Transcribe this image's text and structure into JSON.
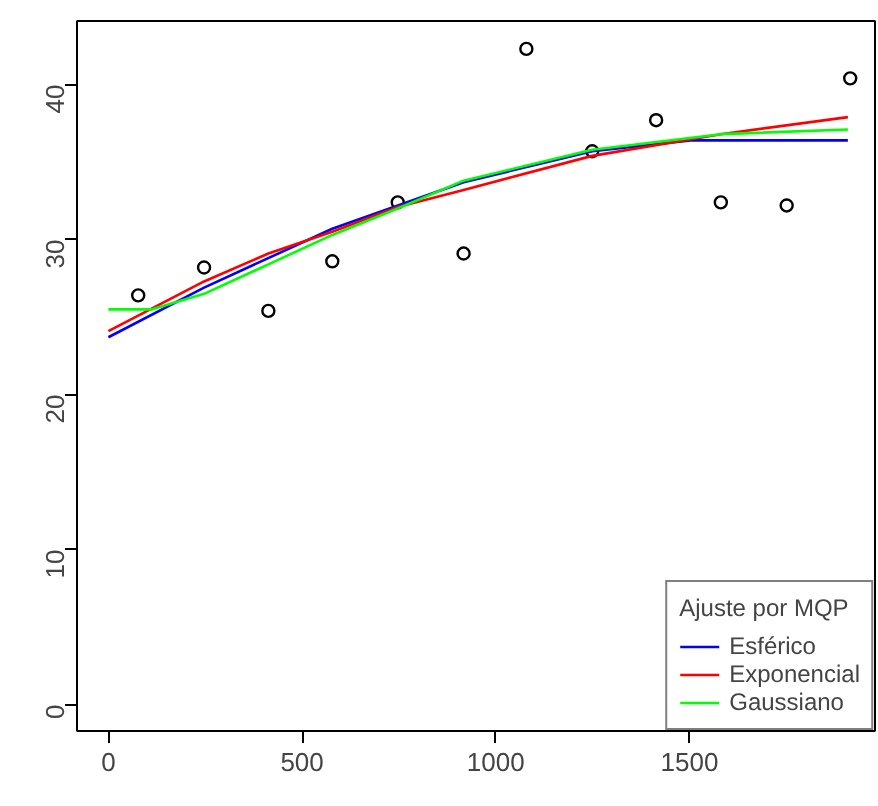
{
  "chart_data": {
    "type": "scatter",
    "xlim": [
      -81,
      1979
    ],
    "ylim": [
      -1.7,
      44.1
    ],
    "xticks": [
      0,
      500,
      1000,
      1500
    ],
    "yticks": [
      0,
      10,
      20,
      30,
      40
    ],
    "grid": false,
    "legend": "bottom right",
    "legend_title": "Ajuste por MQP",
    "series": [
      {
        "marker": "circle",
        "color": "#000000",
        "x": [
          77,
          247,
          413,
          578,
          747,
          917,
          1079,
          1249,
          1414,
          1581,
          1751,
          1915
        ],
        "values": [
          26.4,
          28.2,
          25.4,
          28.6,
          32.4,
          29.1,
          42.3,
          35.7,
          37.7,
          32.4,
          32.2,
          40.4
        ]
      },
      {
        "type": "line",
        "name": "Esférico",
        "color": "#0000ff",
        "marker": "none",
        "x": [
          0,
          247,
          578,
          917,
          1249,
          1503,
          1909
        ],
        "values": [
          23.7,
          26.9,
          30.7,
          33.7,
          35.7,
          36.4,
          36.4
        ]
      },
      {
        "type": "line",
        "name": "Exponencial",
        "color": "#ff0000",
        "marker": "none",
        "x": [
          0,
          247,
          413,
          578,
          747,
          917,
          1249,
          1581,
          1909
        ],
        "values": [
          24.1,
          27.3,
          29.1,
          30.5,
          32.1,
          33.2,
          35.4,
          36.8,
          37.9
        ]
      },
      {
        "type": "line",
        "name": "Gaussiano",
        "color": "#00ff00",
        "marker": "none",
        "x": [
          0,
          113,
          247,
          413,
          578,
          747,
          917,
          1249,
          1581,
          1909
        ],
        "values": [
          25.5,
          25.5,
          26.5,
          28.4,
          30.3,
          32.0,
          33.8,
          35.8,
          36.8,
          37.1
        ]
      }
    ]
  }
}
